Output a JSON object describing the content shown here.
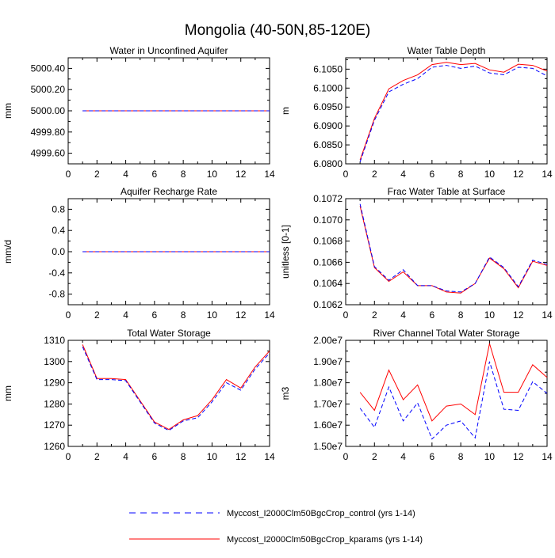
{
  "title": "Mongolia (40-50N,85-120E)",
  "colors": {
    "control": "#0000ff",
    "kparams": "#ff0000",
    "axis": "#000000"
  },
  "legend": {
    "control_label": "Myccost_I2000Clm50BgcCrop_control (yrs 1-14)",
    "kparams_label": "Myccost_I2000Clm50BgcCrop_kparams (yrs 1-14)"
  },
  "chart_data": [
    {
      "type": "line",
      "title": "Water in Unconfined Aquifer",
      "ylabel": "mm",
      "xlim": [
        0,
        14
      ],
      "ylim": [
        4999.5,
        5000.5
      ],
      "xticks": [
        0,
        2,
        4,
        6,
        8,
        10,
        12,
        14
      ],
      "yticks": [
        4999.6,
        4999.8,
        5000.0,
        5000.2,
        5000.4
      ],
      "ytick_labels": [
        "4999.60",
        "4999.80",
        "5000.00",
        "5000.20",
        "5000.40"
      ],
      "x": [
        1,
        2,
        3,
        4,
        5,
        6,
        7,
        8,
        9,
        10,
        11,
        12,
        13,
        14
      ],
      "series": [
        {
          "name": "control",
          "values": [
            5000,
            5000,
            5000,
            5000,
            5000,
            5000,
            5000,
            5000,
            5000,
            5000,
            5000,
            5000,
            5000,
            5000
          ]
        },
        {
          "name": "kparams",
          "values": [
            5000,
            5000,
            5000,
            5000,
            5000,
            5000,
            5000,
            5000,
            5000,
            5000,
            5000,
            5000,
            5000,
            5000
          ]
        }
      ]
    },
    {
      "type": "line",
      "title": "Water Table Depth",
      "ylabel": "m",
      "xlim": [
        0,
        14
      ],
      "ylim": [
        6.08,
        6.108
      ],
      "xticks": [
        0,
        2,
        4,
        6,
        8,
        10,
        12,
        14
      ],
      "yticks": [
        6.08,
        6.085,
        6.09,
        6.095,
        6.1,
        6.105
      ],
      "ytick_labels": [
        "6.0800",
        "6.0850",
        "6.0900",
        "6.0950",
        "6.1000",
        "6.1050"
      ],
      "x": [
        1,
        2,
        3,
        4,
        5,
        6,
        7,
        8,
        9,
        10,
        11,
        12,
        13,
        14
      ],
      "series": [
        {
          "name": "control",
          "values": [
            6.0805,
            6.0915,
            6.099,
            6.101,
            6.1025,
            6.1055,
            6.106,
            6.1052,
            6.1058,
            6.104,
            6.1035,
            6.1055,
            6.1052,
            6.1032
          ]
        },
        {
          "name": "kparams",
          "values": [
            6.081,
            6.092,
            6.0998,
            6.102,
            6.1035,
            6.1062,
            6.1068,
            6.1062,
            6.1065,
            6.1048,
            6.1042,
            6.1063,
            6.106,
            6.1045
          ]
        }
      ]
    },
    {
      "type": "line",
      "title": "Aquifer Recharge Rate",
      "ylabel": "mm/d",
      "xlim": [
        0,
        14
      ],
      "ylim": [
        -1,
        1
      ],
      "xticks": [
        0,
        2,
        4,
        6,
        8,
        10,
        12,
        14
      ],
      "yticks": [
        -0.8,
        -0.4,
        0,
        0.4,
        0.8
      ],
      "ytick_labels": [
        "-0.8",
        "-0.4",
        "0.0",
        "0.4",
        "0.8"
      ],
      "x": [
        1,
        2,
        3,
        4,
        5,
        6,
        7,
        8,
        9,
        10,
        11,
        12,
        13,
        14
      ],
      "series": [
        {
          "name": "control",
          "values": [
            0,
            0,
            0,
            0,
            0,
            0,
            0,
            0,
            0,
            0,
            0,
            0,
            0,
            0
          ]
        },
        {
          "name": "kparams",
          "values": [
            0,
            0,
            0,
            0,
            0,
            0,
            0,
            0,
            0,
            0,
            0,
            0,
            0,
            0
          ]
        }
      ]
    },
    {
      "type": "line",
      "title": "Frac Water Table at Surface",
      "ylabel": "unitless [0-1]",
      "xlim": [
        0,
        14
      ],
      "ylim": [
        0.1062,
        0.1072
      ],
      "xticks": [
        0,
        2,
        4,
        6,
        8,
        10,
        12,
        14
      ],
      "yticks": [
        0.1062,
        0.1064,
        0.1066,
        0.1068,
        0.107,
        0.1072
      ],
      "ytick_labels": [
        "0.1062",
        "0.1064",
        "0.1066",
        "0.1068",
        "0.1070",
        "0.1072"
      ],
      "x": [
        1,
        2,
        3,
        4,
        5,
        6,
        7,
        8,
        9,
        10,
        11,
        12,
        13,
        14
      ],
      "series": [
        {
          "name": "control",
          "values": [
            0.10715,
            0.10656,
            0.10643,
            0.10653,
            0.10638,
            0.10638,
            0.10633,
            0.10632,
            0.1064,
            0.10665,
            0.10655,
            0.10637,
            0.10662,
            0.10658
          ]
        },
        {
          "name": "kparams",
          "values": [
            0.10713,
            0.10655,
            0.10642,
            0.10651,
            0.10638,
            0.10638,
            0.10632,
            0.10631,
            0.1064,
            0.10664,
            0.10654,
            0.10636,
            0.10661,
            0.10657
          ]
        }
      ]
    },
    {
      "type": "line",
      "title": "Total Water Storage",
      "ylabel": "mm",
      "xlim": [
        0,
        14
      ],
      "ylim": [
        1260,
        1310
      ],
      "xticks": [
        0,
        2,
        4,
        6,
        8,
        10,
        12,
        14
      ],
      "yticks": [
        1260,
        1270,
        1280,
        1290,
        1300,
        1310
      ],
      "ytick_labels": [
        "1260",
        "1270",
        "1280",
        "1290",
        "1300",
        "1310"
      ],
      "x": [
        1,
        2,
        3,
        4,
        5,
        6,
        7,
        8,
        9,
        10,
        11,
        12,
        13,
        14
      ],
      "series": [
        {
          "name": "control",
          "values": [
            1307,
            1291.5,
            1291.5,
            1291,
            1281,
            1271,
            1267.5,
            1272,
            1273.5,
            1281,
            1290,
            1286.5,
            1296.5,
            1304
          ]
        },
        {
          "name": "kparams",
          "values": [
            1308,
            1292,
            1292,
            1291.5,
            1281.5,
            1271.5,
            1268,
            1272.5,
            1274.5,
            1282,
            1291.5,
            1287.5,
            1297.5,
            1305
          ]
        }
      ]
    },
    {
      "type": "line",
      "title": "River Channel Total Water Storage",
      "ylabel": "m3",
      "xlim": [
        0,
        14
      ],
      "ylim": [
        15000000,
        20000000
      ],
      "xticks": [
        0,
        2,
        4,
        6,
        8,
        10,
        12,
        14
      ],
      "yticks": [
        15000000,
        16000000,
        17000000,
        18000000,
        19000000,
        20000000
      ],
      "ytick_labels": [
        "1.50e7",
        "1.60e7",
        "1.70e7",
        "1.80e7",
        "1.90e7",
        "2.00e7"
      ],
      "x": [
        1,
        2,
        3,
        4,
        5,
        6,
        7,
        8,
        9,
        10,
        11,
        12,
        13,
        14
      ],
      "series": [
        {
          "name": "control",
          "values": [
            16800000,
            15900000,
            17800000,
            16200000,
            17050000,
            15350000,
            16000000,
            16200000,
            15400000,
            19000000,
            16750000,
            16700000,
            18050000,
            17500000
          ]
        },
        {
          "name": "kparams",
          "values": [
            17550000,
            16700000,
            18600000,
            17200000,
            17900000,
            16200000,
            16900000,
            17000000,
            16500000,
            19850000,
            17550000,
            17550000,
            18850000,
            18250000
          ]
        }
      ]
    }
  ]
}
